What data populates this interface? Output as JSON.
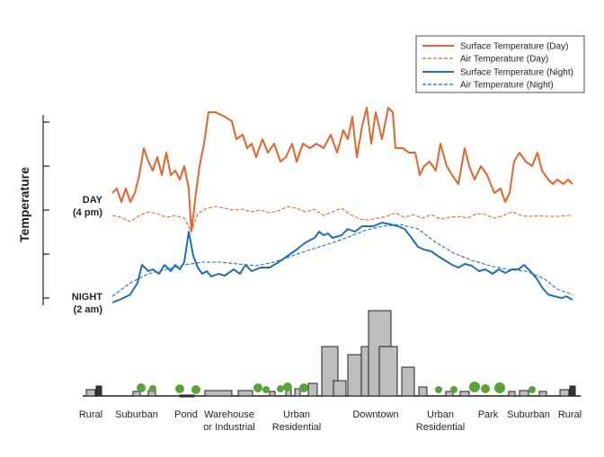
{
  "chart_data": {
    "type": "line",
    "y_label": "Temperature",
    "annotations": [
      [
        "DAY",
        "(4 pm)"
      ],
      [
        "NIGHT",
        "(2 am)"
      ]
    ],
    "ylim": [
      0,
      212
    ],
    "yticks": [
      8,
      57,
      106,
      155,
      204
    ],
    "xlim": [
      0,
      520
    ],
    "zones": [
      [
        "Rural"
      ],
      [
        "Suburban"
      ],
      [
        "Pond"
      ],
      [
        "Warehouse",
        "or Industrial"
      ],
      [
        "Urban",
        "Residential"
      ],
      [
        "Downtown"
      ],
      [
        "Urban",
        "Residential"
      ],
      [
        "Park"
      ],
      [
        "Suburban"
      ],
      [
        "Rural"
      ]
    ],
    "series": [
      {
        "name": "Surface Temperature (Day)",
        "color": "#e0662e",
        "dashed": false,
        "x": [
          0,
          5,
          10,
          15,
          20,
          25,
          30,
          35,
          40,
          45,
          50,
          55,
          60,
          65,
          70,
          75,
          80,
          85,
          88,
          93,
          97,
          102,
          107,
          115,
          125,
          133,
          138,
          145,
          150,
          155,
          160,
          167,
          173,
          180,
          187,
          193,
          200,
          205,
          212,
          220,
          227,
          235,
          243,
          250,
          257,
          262,
          267,
          272,
          278,
          283,
          288,
          293,
          300,
          307,
          312,
          315,
          323,
          330,
          337,
          342,
          347,
          353,
          360,
          365,
          372,
          378,
          385,
          392,
          397,
          403,
          410,
          417,
          425,
          432,
          437,
          442,
          447,
          453,
          460,
          467,
          473,
          478,
          485,
          490,
          495,
          502,
          507,
          512
        ],
        "values": [
          125,
          130,
          115,
          130,
          115,
          125,
          145,
          175,
          160,
          150,
          165,
          145,
          170,
          145,
          150,
          140,
          155,
          130,
          82,
          125,
          155,
          180,
          215,
          215,
          210,
          205,
          185,
          190,
          175,
          180,
          165,
          185,
          170,
          180,
          160,
          165,
          180,
          160,
          180,
          175,
          180,
          175,
          190,
          170,
          195,
          185,
          210,
          165,
          200,
          220,
          180,
          215,
          185,
          220,
          215,
          175,
          175,
          170,
          170,
          145,
          155,
          160,
          150,
          180,
          155,
          145,
          135,
          175,
          155,
          140,
          155,
          145,
          125,
          130,
          115,
          125,
          160,
          170,
          160,
          155,
          170,
          150,
          140,
          135,
          140,
          135,
          140,
          135
        ]
      },
      {
        "name": "Air Temperature  (Day)",
        "color": "#e0662e",
        "dashed": true,
        "x": [
          0,
          10,
          20,
          30,
          40,
          50,
          60,
          70,
          80,
          88,
          95,
          105,
          115,
          125,
          135,
          145,
          155,
          165,
          175,
          185,
          195,
          205,
          215,
          225,
          235,
          245,
          255,
          265,
          275,
          285,
          295,
          305,
          315,
          325,
          335,
          345,
          355,
          365,
          375,
          385,
          395,
          405,
          415,
          425,
          435,
          445,
          455,
          465,
          475,
          485,
          495,
          505,
          512
        ],
        "values": [
          100,
          98,
          93,
          100,
          104,
          102,
          98,
          100,
          97,
          82,
          102,
          108,
          110,
          108,
          106,
          107,
          104,
          106,
          103,
          105,
          110,
          108,
          104,
          107,
          100,
          104,
          108,
          101,
          96,
          95,
          97,
          99,
          103,
          98,
          101,
          97,
          101,
          96,
          98,
          99,
          97,
          102,
          101,
          97,
          100,
          104,
          100,
          99,
          100,
          99,
          99,
          100,
          100
        ]
      },
      {
        "name": "Surface Temperature (Night)",
        "color": "#1f6fb5",
        "dashed": false,
        "x": [
          0,
          10,
          20,
          28,
          33,
          40,
          45,
          52,
          58,
          65,
          70,
          75,
          80,
          85,
          90,
          95,
          100,
          105,
          110,
          118,
          125,
          135,
          142,
          148,
          155,
          165,
          175,
          185,
          195,
          205,
          215,
          225,
          230,
          235,
          240,
          245,
          255,
          262,
          270,
          278,
          290,
          300,
          310,
          318,
          325,
          333,
          340,
          347,
          355,
          362,
          370,
          378,
          385,
          392,
          400,
          408,
          415,
          423,
          430,
          437,
          445,
          452,
          458,
          465,
          472,
          478,
          485,
          492,
          500,
          505,
          512
        ],
        "values": [
          3,
          7,
          12,
          25,
          45,
          38,
          40,
          35,
          45,
          38,
          45,
          40,
          48,
          82,
          55,
          42,
          35,
          38,
          32,
          35,
          33,
          40,
          35,
          45,
          38,
          42,
          42,
          48,
          55,
          62,
          70,
          75,
          82,
          78,
          80,
          75,
          78,
          85,
          82,
          88,
          88,
          92,
          90,
          88,
          85,
          75,
          65,
          62,
          60,
          55,
          50,
          45,
          42,
          46,
          44,
          38,
          40,
          35,
          40,
          36,
          40,
          40,
          45,
          38,
          30,
          20,
          12,
          10,
          8,
          10,
          6
        ]
      },
      {
        "name": "Air Temperature (Night)",
        "color": "#1f6fb5",
        "dashed": true,
        "x": [
          0,
          20,
          40,
          60,
          80,
          100,
          120,
          140,
          160,
          180,
          200,
          220,
          240,
          260,
          280,
          300,
          320,
          340,
          360,
          380,
          400,
          420,
          440,
          460,
          480,
          495,
          512
        ],
        "values": [
          10,
          25,
          35,
          40,
          45,
          48,
          48,
          46,
          44,
          48,
          55,
          62,
          68,
          75,
          83,
          88,
          90,
          85,
          70,
          58,
          50,
          44,
          40,
          38,
          30,
          18,
          12
        ]
      }
    ]
  }
}
